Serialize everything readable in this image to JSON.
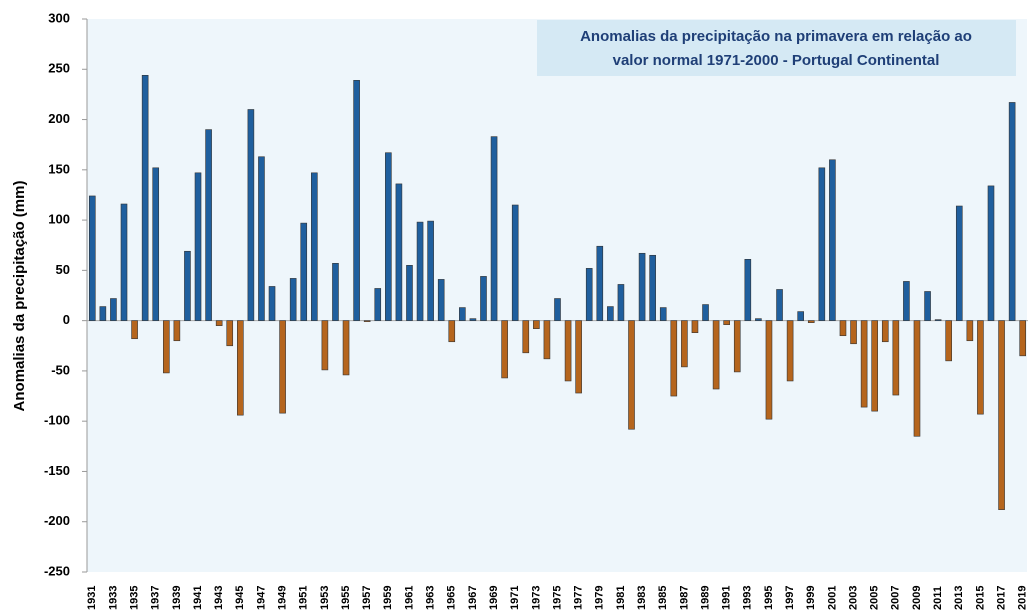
{
  "chart_data": {
    "type": "bar",
    "title": [
      "Anomalias da precipitação na primavera em relação ao",
      "valor normal  1971-2000 - Portugal Continental"
    ],
    "y_label": "Anomalias da precipitação (mm)",
    "categories": [
      "1931",
      null,
      "1933",
      null,
      "1935",
      null,
      "1937",
      null,
      "1939",
      null,
      "1941",
      null,
      "1943",
      null,
      "1945",
      null,
      "1947",
      null,
      "1949",
      null,
      "1951",
      null,
      "1953",
      null,
      "1955",
      null,
      "1957",
      null,
      "1959",
      null,
      "1961",
      null,
      "1963",
      null,
      "1965",
      null,
      "1967",
      null,
      "1969",
      null,
      "1971",
      null,
      "1973",
      null,
      "1975",
      null,
      "1977",
      null,
      "1979",
      null,
      "1981",
      null,
      "1983",
      null,
      "1985",
      null,
      "1987",
      null,
      "1989",
      null,
      "1991",
      null,
      "1993",
      null,
      "1995",
      null,
      "1997",
      null,
      "1999",
      null,
      "2001",
      null,
      "2003",
      null,
      "2005",
      null,
      "2007",
      null,
      "2009",
      null,
      "2011",
      null,
      "2013",
      null,
      "2015",
      null,
      "2017",
      null,
      "2019"
    ],
    "values": [
      124,
      14,
      22,
      116,
      -18,
      244,
      152,
      -52,
      -20,
      69,
      147,
      190,
      -5,
      -25,
      -94,
      210,
      163,
      34,
      -92,
      42,
      97,
      147,
      -49,
      57,
      -54,
      239,
      -1,
      32,
      167,
      136,
      55,
      98,
      99,
      41,
      -21,
      13,
      2,
      44,
      183,
      -57,
      115,
      -32,
      -8,
      -38,
      22,
      -60,
      -72,
      52,
      74,
      14,
      36,
      -108,
      67,
      65,
      13,
      -75,
      -46,
      -12,
      16,
      -68,
      -4,
      -51,
      61,
      2,
      -98,
      31,
      -60,
      9,
      -2,
      152,
      160,
      -15,
      -23,
      -86,
      -90,
      -21,
      -74,
      39,
      -115,
      29,
      1,
      -40,
      114,
      -20,
      -93,
      134,
      -188,
      217,
      -35
    ],
    "positive_color": "#1f5f9e",
    "negative_color": "#b5651d",
    "ylim": [
      -250,
      300
    ],
    "yticks": [
      -250,
      -200,
      -150,
      -100,
      -50,
      0,
      50,
      100,
      150,
      200,
      250,
      300
    ]
  }
}
